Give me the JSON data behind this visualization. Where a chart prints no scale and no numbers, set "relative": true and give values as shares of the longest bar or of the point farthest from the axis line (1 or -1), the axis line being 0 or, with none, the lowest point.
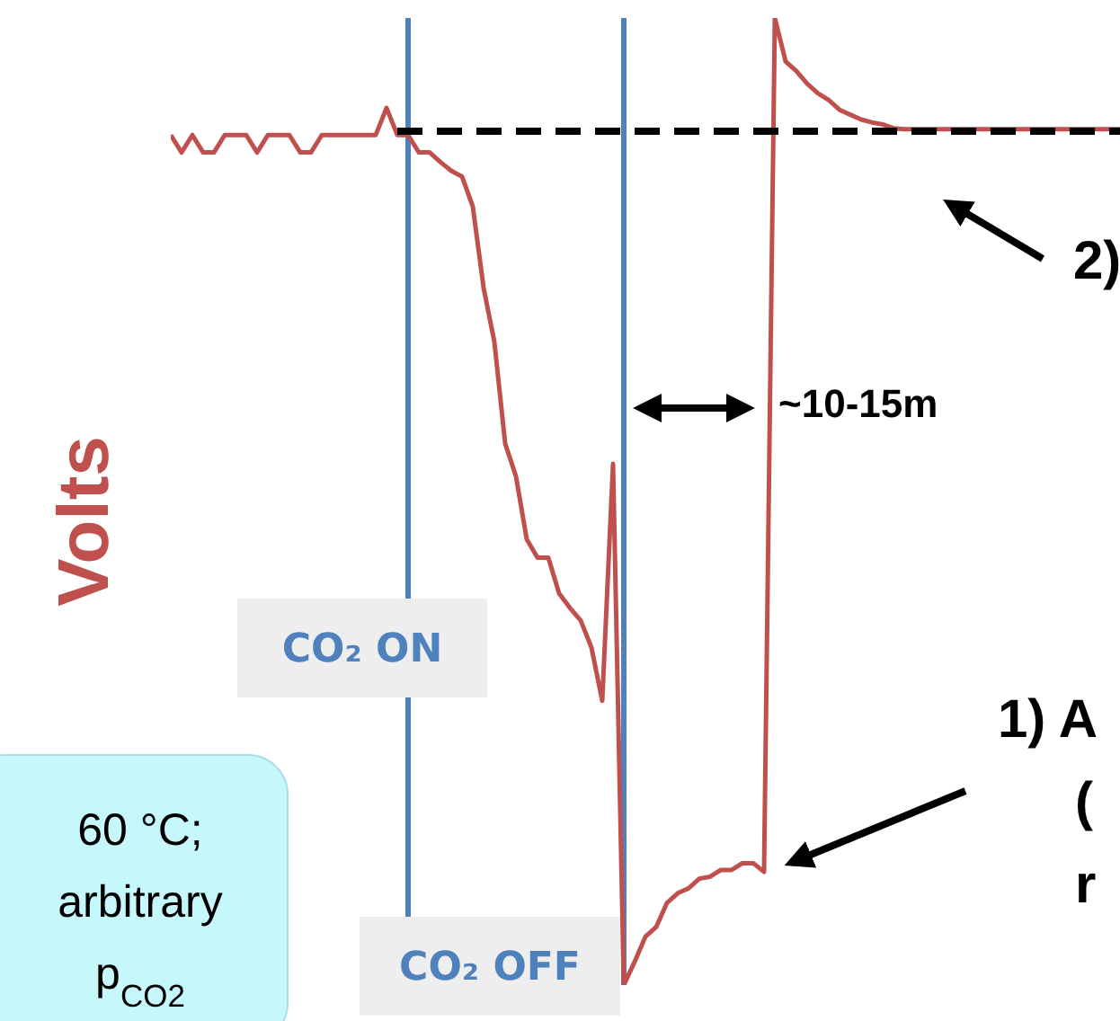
{
  "chart_data": {
    "type": "line",
    "relative": true,
    "ylabel": "Volts",
    "grid": false,
    "legend": false,
    "marker": "none",
    "categories": [
      null,
      null,
      null,
      null,
      null,
      null,
      null,
      null,
      null,
      null,
      null,
      null,
      null,
      null,
      null,
      null,
      null,
      null,
      null,
      null,
      null,
      null,
      null,
      null,
      null,
      null,
      null,
      null,
      null,
      null,
      null,
      null,
      null,
      null,
      null,
      null,
      null,
      null,
      null,
      null,
      null,
      null,
      null,
      null,
      null,
      null,
      null,
      null,
      null,
      null,
      null,
      null,
      null,
      null,
      null,
      null,
      null,
      null,
      null,
      null,
      null,
      null,
      null,
      null,
      null,
      null,
      null,
      null,
      null,
      null,
      null,
      null,
      null,
      null,
      null,
      null,
      null,
      null,
      null,
      null,
      null,
      null,
      null,
      null,
      null,
      null,
      null,
      null,
      null
    ],
    "series": [
      {
        "color": "#c0504d",
        "values": [
          0.879,
          0.861,
          0.879,
          0.861,
          0.861,
          0.879,
          0.879,
          0.879,
          0.861,
          0.879,
          0.879,
          0.879,
          0.861,
          0.861,
          0.879,
          0.879,
          0.879,
          0.879,
          0.879,
          0.879,
          0.907,
          0.879,
          0.879,
          0.861,
          0.861,
          0.851,
          0.842,
          0.836,
          0.805,
          0.721,
          0.665,
          0.56,
          0.526,
          0.461,
          0.442,
          0.442,
          0.405,
          0.39,
          0.377,
          0.349,
          0.294,
          0.539,
          0,
          0.024,
          0.05,
          0.06,
          0.085,
          0.095,
          0.1,
          0.11,
          0.112,
          0.119,
          0.119,
          0.126,
          0.126,
          0.117,
          1,
          0.955,
          0.945,
          0.932,
          0.922,
          0.915,
          0.905,
          0.9,
          0.895,
          0.892,
          0.89,
          0.886,
          0.885,
          0.885,
          0.885,
          0.885,
          0.885,
          0.885,
          0.885,
          0.885,
          0.885,
          0.885,
          0.885,
          0.885,
          0.885,
          0.885,
          0.885,
          0.885,
          0.885,
          0.885,
          0.885,
          0.885,
          0.885
        ]
      },
      {
        "color": "#000000",
        "line_style": "dashed",
        "values": [
          null,
          null,
          null,
          null,
          null,
          null,
          null,
          null,
          null,
          null,
          null,
          null,
          null,
          null,
          null,
          null,
          null,
          null,
          null,
          null,
          null,
          0.883,
          0.883,
          0.883,
          0.883,
          0.883,
          0.883,
          0.883,
          0.883,
          0.883,
          0.883,
          0.883,
          0.883,
          0.883,
          0.883,
          0.883,
          0.883,
          0.883,
          0.883,
          0.883,
          0.883,
          0.883,
          0.883,
          0.883,
          0.883,
          0.883,
          0.883,
          0.883,
          0.883,
          0.883,
          0.883,
          0.883,
          0.883,
          0.883,
          0.883,
          0.883,
          0.883,
          0.883,
          0.883,
          0.883,
          0.883,
          0.883,
          0.883,
          0.883,
          0.883,
          0.883,
          0.883,
          0.883,
          0.883,
          0.883,
          0.883,
          0.883,
          0.883,
          0.883,
          0.883,
          0.883,
          0.883,
          0.883,
          0.883,
          0.883,
          0.883,
          0.883,
          0.883,
          0.883,
          0.883,
          0.883,
          0.883,
          0.883,
          0.883
        ]
      }
    ],
    "annotations": [
      "~10-15m",
      "2)",
      "1) A",
      "(",
      "r",
      "60 °C;",
      "arbitrary",
      "p$_{CO2}$",
      "CO₂ ON",
      "CO₂ OFF"
    ]
  }
}
